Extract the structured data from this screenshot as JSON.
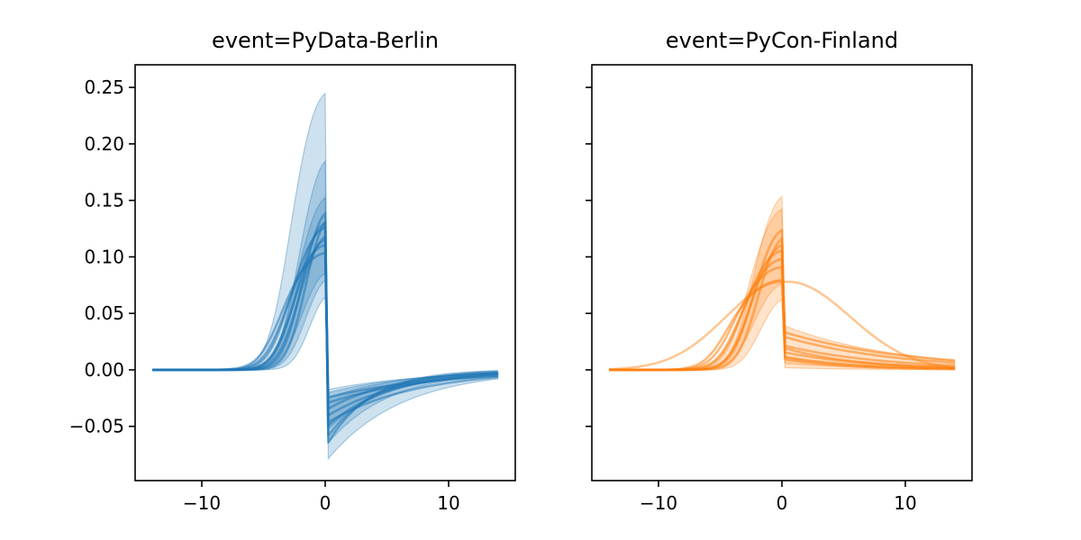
{
  "chart_data": {
    "type": "line",
    "shared_y": true,
    "y_ticks": [
      -0.05,
      0.0,
      0.05,
      0.1,
      0.15,
      0.2,
      0.25
    ],
    "y_tick_labels": [
      "−0.05",
      "0.00",
      "0.05",
      "0.10",
      "0.15",
      "0.20",
      "0.25"
    ],
    "ylim": [
      -0.098,
      0.27
    ],
    "xlim": [
      -15.4,
      15.4
    ],
    "x_ticks": [
      -10,
      0,
      10
    ],
    "x_tick_labels": [
      "−10",
      "0",
      "10"
    ],
    "panels": [
      {
        "title": "event=PyData-Berlin",
        "color": "#1f77b4",
        "series": [
          {
            "peak": 0.137,
            "trough": -0.052,
            "w": 3.0,
            "d": 5.0
          },
          {
            "peak": 0.12,
            "trough": -0.042,
            "w": 3.2,
            "d": 6.0
          },
          {
            "peak": 0.15,
            "trough": -0.062,
            "w": 2.5,
            "d": 4.0
          },
          {
            "peak": 0.113,
            "trough": -0.03,
            "w": 3.8,
            "d": 8.0
          },
          {
            "peak": 0.125,
            "trough": -0.048,
            "w": 2.8,
            "d": 7.0
          },
          {
            "peak": 0.105,
            "trough": -0.036,
            "w": 4.2,
            "d": 5.5
          },
          {
            "peak": 0.145,
            "trough": -0.069,
            "w": 2.2,
            "d": 3.5
          },
          {
            "peak": 0.13,
            "trough": -0.025,
            "w": 3.5,
            "d": 9.0
          }
        ],
        "bands": [
          {
            "peak": 0.252,
            "trough": -0.082,
            "w": 3.5,
            "d": 6.0
          },
          {
            "peak": 0.196,
            "trough": -0.068,
            "w": 2.8,
            "d": 5.0
          },
          {
            "peak": 0.16,
            "trough": -0.055,
            "w": 3.0,
            "d": 5.0
          }
        ],
        "bands_low": [
          {
            "peak": 0.075,
            "trough": -0.021,
            "w": 1.8,
            "d": 7.0
          },
          {
            "peak": 0.088,
            "trough": -0.026,
            "w": 2.2,
            "d": 6.0
          },
          {
            "peak": 0.092,
            "trough": -0.018,
            "w": 2.6,
            "d": 8.0
          }
        ]
      },
      {
        "title": "event=PyCon-Finland",
        "color": "#ff7f0e",
        "series": [
          {
            "peak": 0.13,
            "tail": 0.012,
            "w": 3.0,
            "d": 6.0
          },
          {
            "peak": 0.115,
            "tail": 0.022,
            "w": 3.2,
            "d": 8.0
          },
          {
            "peak": 0.108,
            "tail": 0.03,
            "w": 3.8,
            "d": 9.0
          },
          {
            "peak": 0.1,
            "tail": 0.016,
            "w": 4.0,
            "d": 7.0
          },
          {
            "peak": 0.092,
            "tail": 0.034,
            "w": 4.5,
            "d": 10.0
          },
          {
            "peak": 0.125,
            "tail": 0.02,
            "w": 2.6,
            "d": 6.0
          },
          {
            "peak": 0.08,
            "tail": 0.01,
            "w": 5.0,
            "d": 5.0
          }
        ],
        "bands": [
          {
            "peak": 0.161,
            "tail": 0.012,
            "w": 3.0,
            "d": 6.0
          },
          {
            "peak": 0.147,
            "tail": 0.04,
            "w": 3.4,
            "d": 9.0
          }
        ],
        "bands_low": [
          {
            "peak": 0.068,
            "tail": 0.002,
            "w": 2.4,
            "d": 6.0
          },
          {
            "peak": 0.08,
            "tail": 0.006,
            "w": 3.0,
            "d": 7.0
          }
        ],
        "hump": {
          "peak": 0.078,
          "center": 0.5,
          "w": 5.0
        }
      }
    ]
  }
}
